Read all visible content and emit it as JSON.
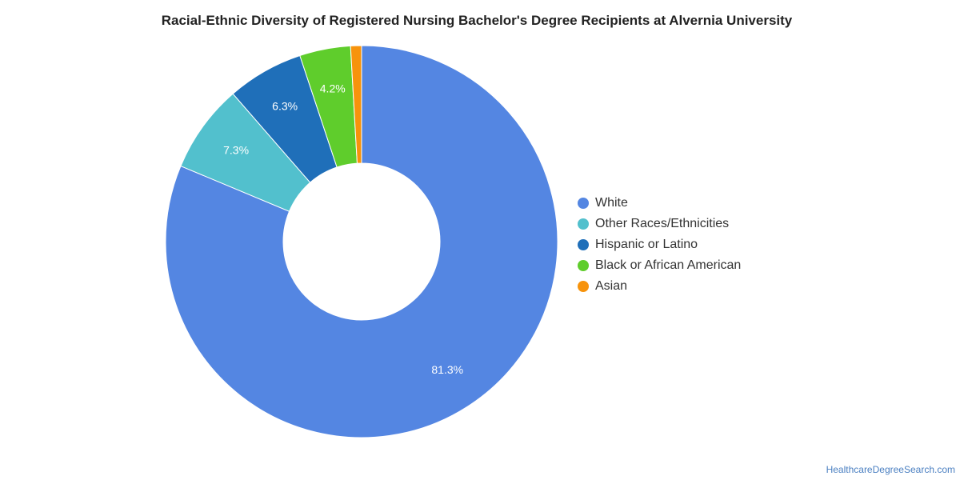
{
  "title": "Racial-Ethnic Diversity of Registered Nursing Bachelor's Degree Recipients at Alvernia University",
  "credit": "HealthcareDegreeSearch.com",
  "chart_data": {
    "type": "pie",
    "donut": true,
    "title": "Racial-Ethnic Diversity of Registered Nursing Bachelor's Degree Recipients at Alvernia University",
    "legend_position": "right",
    "slices": [
      {
        "name": "White",
        "value": 81.3,
        "label": "81.3%",
        "color": "#5486e2"
      },
      {
        "name": "Other Races/Ethnicities",
        "value": 7.3,
        "label": "7.3%",
        "color": "#52c0cd"
      },
      {
        "name": "Hispanic or Latino",
        "value": 6.3,
        "label": "6.3%",
        "color": "#1f6fb9"
      },
      {
        "name": "Black or African American",
        "value": 4.2,
        "label": "4.2%",
        "color": "#5fcd2c"
      },
      {
        "name": "Asian",
        "value": 0.9,
        "label": "",
        "color": "#f7930c"
      }
    ]
  }
}
